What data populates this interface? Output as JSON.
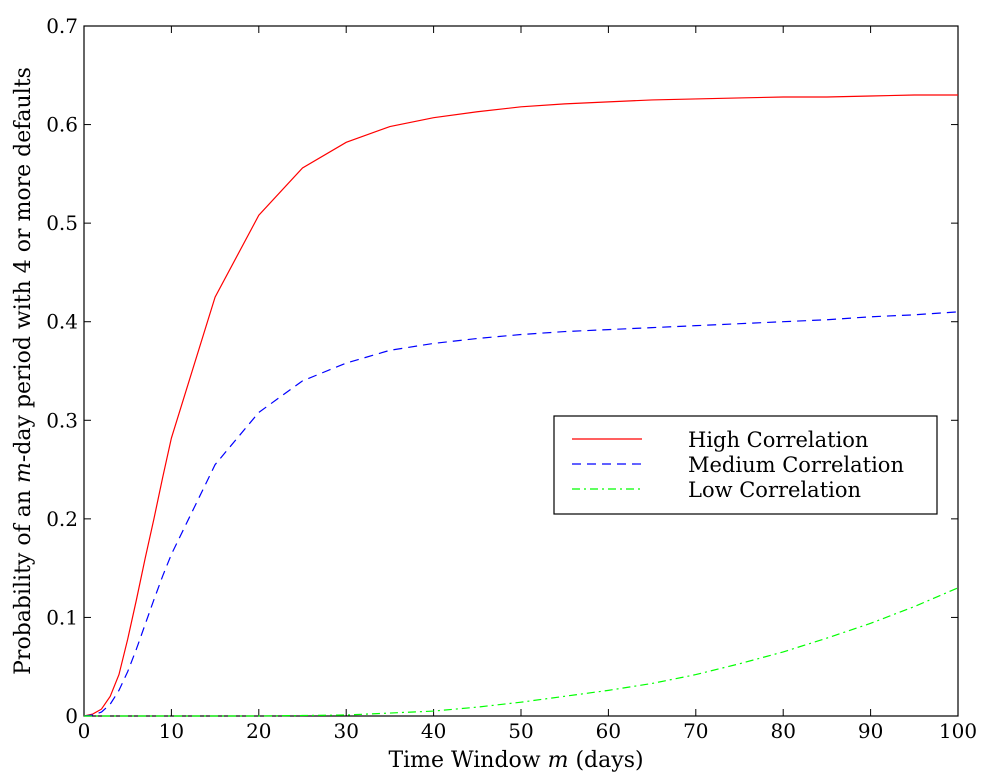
{
  "chart_data": {
    "type": "line",
    "title": "",
    "xlabel": "Time Window m (days)",
    "xlabel_parts": [
      "Time Window ",
      "m",
      " (days)"
    ],
    "ylabel": "Probability of an m-day period with 4 or more defaults",
    "ylabel_parts": [
      "Probability of an ",
      "m",
      "-day period with 4 or more defaults"
    ],
    "xlim": [
      0,
      100
    ],
    "ylim": [
      0,
      0.7
    ],
    "xticks": [
      0,
      10,
      20,
      30,
      40,
      50,
      60,
      70,
      80,
      90,
      100
    ],
    "xtick_labels": [
      "0",
      "10",
      "20",
      "30",
      "40",
      "50",
      "60",
      "70",
      "80",
      "90",
      "100"
    ],
    "yticks": [
      0,
      0.1,
      0.2,
      0.3,
      0.4,
      0.5,
      0.6,
      0.7
    ],
    "ytick_labels": [
      "0",
      "0.1",
      "0.2",
      "0.3",
      "0.4",
      "0.5",
      "0.6",
      "0.7"
    ],
    "grid": false,
    "legend_position": "right",
    "series": [
      {
        "name": "High Correlation",
        "color": "#ff0000",
        "dash": "solid",
        "x": [
          0,
          1,
          2,
          3,
          4,
          5,
          6,
          7,
          8,
          9,
          10,
          15,
          20,
          25,
          30,
          35,
          40,
          45,
          50,
          55,
          60,
          65,
          70,
          75,
          80,
          85,
          90,
          95,
          100
        ],
        "y": [
          0,
          0.002,
          0.007,
          0.02,
          0.042,
          0.078,
          0.118,
          0.16,
          0.2,
          0.242,
          0.282,
          0.425,
          0.508,
          0.556,
          0.582,
          0.598,
          0.607,
          0.613,
          0.618,
          0.621,
          0.623,
          0.625,
          0.626,
          0.627,
          0.628,
          0.628,
          0.629,
          0.63,
          0.63
        ]
      },
      {
        "name": "Medium Correlation",
        "color": "#0000ff",
        "dash": "dashed",
        "x": [
          0,
          1,
          2,
          3,
          4,
          5,
          6,
          7,
          8,
          9,
          10,
          15,
          20,
          25,
          30,
          35,
          40,
          45,
          50,
          55,
          60,
          65,
          70,
          75,
          80,
          85,
          90,
          95,
          100
        ],
        "y": [
          0,
          0.001,
          0.004,
          0.012,
          0.026,
          0.045,
          0.068,
          0.093,
          0.118,
          0.142,
          0.164,
          0.255,
          0.308,
          0.34,
          0.358,
          0.371,
          0.378,
          0.383,
          0.387,
          0.39,
          0.392,
          0.394,
          0.396,
          0.398,
          0.4,
          0.402,
          0.405,
          0.407,
          0.41
        ]
      },
      {
        "name": "Low Correlation",
        "color": "#00ff00",
        "dash": "dashdot",
        "x": [
          0,
          10,
          20,
          25,
          30,
          35,
          40,
          45,
          50,
          55,
          60,
          65,
          70,
          75,
          80,
          85,
          90,
          95,
          100
        ],
        "y": [
          0,
          0,
          0,
          0.0005,
          0.001,
          0.003,
          0.005,
          0.009,
          0.014,
          0.02,
          0.026,
          0.033,
          0.042,
          0.053,
          0.065,
          0.079,
          0.094,
          0.111,
          0.13
        ]
      }
    ]
  }
}
